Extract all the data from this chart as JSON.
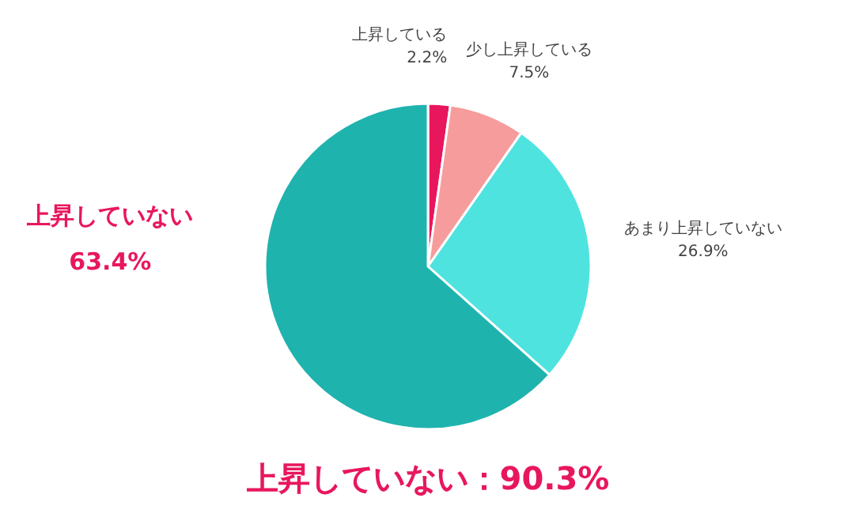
{
  "chart_data": {
    "type": "pie",
    "categories": [
      "上昇している",
      "少し上昇している",
      "あまり上昇していない",
      "上昇していない"
    ],
    "values": [
      2.2,
      7.5,
      26.9,
      63.4
    ],
    "colors": [
      "#e8175d",
      "#f79c9c",
      "#4fe3e0",
      "#1fb3ae"
    ],
    "value_labels": [
      "2.2%",
      "7.5%",
      "26.9%",
      "63.4%"
    ],
    "annotations": [
      "上昇していない：90.3%"
    ]
  }
}
